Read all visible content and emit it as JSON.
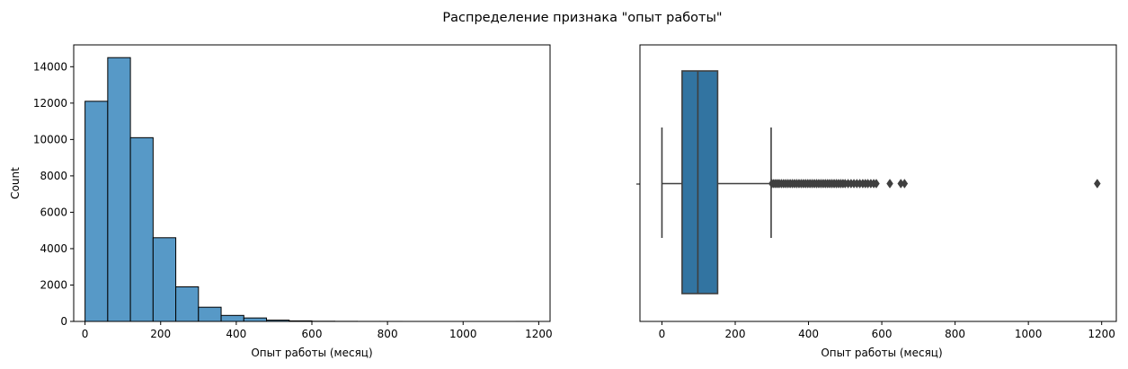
{
  "figure": {
    "title": "Распределение признака \"опыт работы\""
  },
  "chart_data": [
    {
      "type": "bar",
      "subtype": "histogram",
      "bin_edges": [
        0,
        60,
        120,
        180,
        240,
        300,
        360,
        420,
        480,
        540,
        600,
        660,
        720,
        780,
        840,
        900,
        960,
        1020,
        1080,
        1140,
        1200
      ],
      "values": [
        12100,
        14500,
        10100,
        4600,
        1900,
        780,
        330,
        190,
        70,
        30,
        10,
        5,
        2,
        1,
        0,
        0,
        0,
        0,
        0,
        1
      ],
      "xlabel": "Опыт работы (месяц)",
      "ylabel": "Count",
      "xlim": [
        -30,
        1230
      ],
      "ylim": [
        0,
        15200
      ],
      "xticks": [
        "0",
        "200",
        "400",
        "600",
        "800",
        "1000",
        "1200"
      ],
      "yticks": [
        "0",
        "2000",
        "4000",
        "6000",
        "8000",
        "10000",
        "12000",
        "14000"
      ],
      "bar_color": "#5799c7",
      "edge_color": "#000000",
      "grid": false
    },
    {
      "type": "boxplot",
      "min_whisker": 0,
      "q1": 55,
      "median": 98,
      "q3": 152,
      "max_whisker": 298,
      "outliers": [
        300,
        305,
        310,
        315,
        320,
        326,
        332,
        338,
        344,
        350,
        356,
        362,
        368,
        374,
        380,
        386,
        392,
        398,
        404,
        410,
        416,
        422,
        428,
        434,
        440,
        446,
        452,
        458,
        464,
        470,
        476,
        482,
        488,
        494,
        500,
        508,
        516,
        524,
        532,
        540,
        548,
        555,
        562,
        570,
        578,
        585,
        622,
        652,
        662,
        1188
      ],
      "xlabel": "Опыт работы (месяц)",
      "ylabel": "",
      "xlim": [
        -60,
        1240
      ],
      "xticks": [
        "0",
        "200",
        "400",
        "600",
        "800",
        "1000",
        "1200"
      ],
      "box_color": "#3274a1",
      "line_color": "#3f3f3f",
      "grid": false
    }
  ]
}
